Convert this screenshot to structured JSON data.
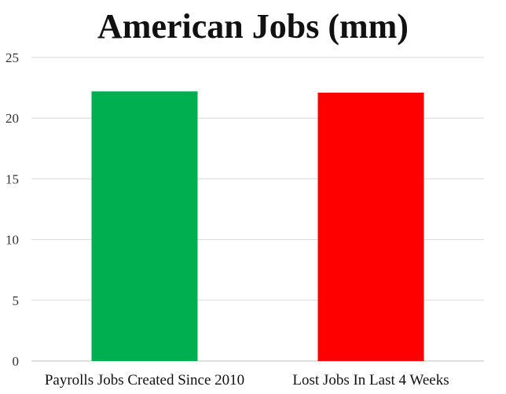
{
  "chart_data": {
    "type": "bar",
    "title": "American Jobs (mm)",
    "categories": [
      "Payrolls Jobs Created Since 2010",
      "Lost Jobs In Last 4 Weeks"
    ],
    "values": [
      22.2,
      22.1
    ],
    "colors": [
      "#00b050",
      "#ff0000"
    ],
    "ylim": [
      0,
      25
    ],
    "yticks": [
      "0",
      "5",
      "10",
      "15",
      "20",
      "25"
    ],
    "grid": true,
    "legend": "none"
  }
}
